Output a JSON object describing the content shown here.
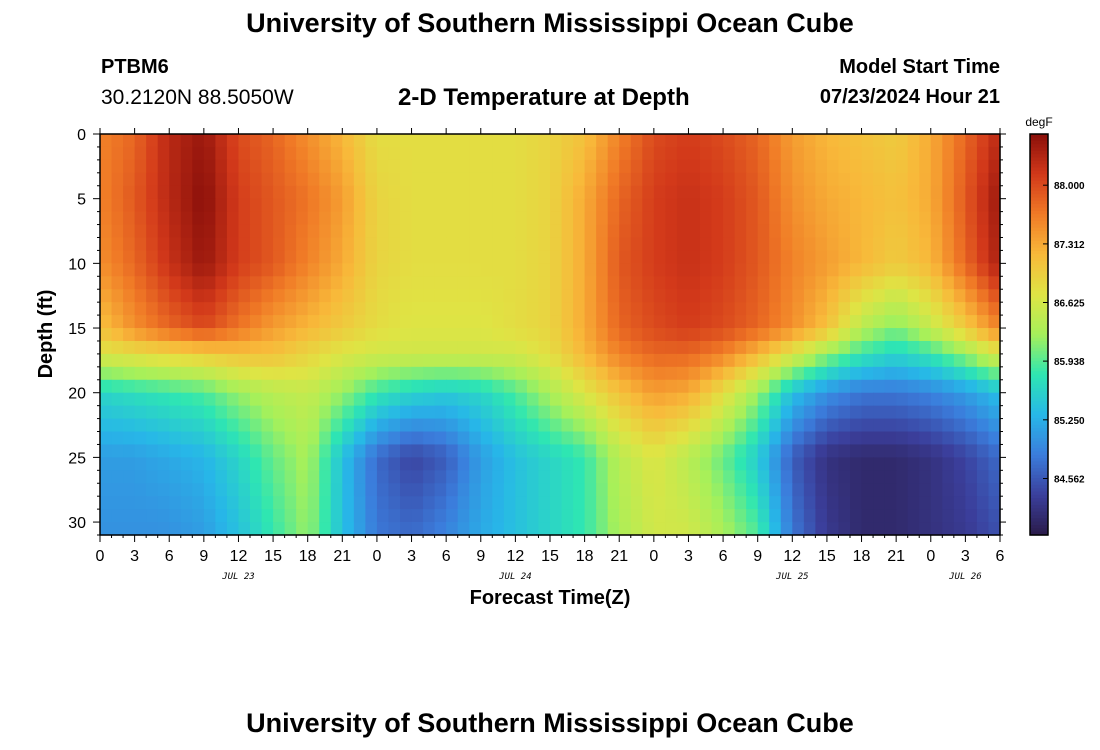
{
  "header": {
    "title": "University of Southern Mississippi Ocean Cube",
    "station_id": "PTBM6",
    "station_coords": "30.2120N  88.5050W",
    "start_label": "Model Start Time",
    "start_value": "07/23/2024 Hour 21"
  },
  "footer": {
    "title": "University of Southern Mississippi Ocean Cube"
  },
  "chart_data": {
    "type": "heatmap",
    "title": "2-D Temperature at Depth",
    "xlabel": "Forecast Time(Z)",
    "ylabel": "Depth (ft)",
    "ylim": [
      0,
      31
    ],
    "y_inverted": true,
    "x_hours": [
      0,
      78
    ],
    "x_tick_labels": [
      "0",
      "3",
      "6",
      "9",
      "12",
      "15",
      "18",
      "21",
      "0",
      "3",
      "6",
      "9",
      "12",
      "15",
      "18",
      "21",
      "0",
      "3",
      "6",
      "9",
      "12",
      "15",
      "18",
      "21",
      "0",
      "3",
      "6"
    ],
    "date_labels": [
      {
        "label": "JUL 23",
        "hour": 12
      },
      {
        "label": "JUL 24",
        "hour": 36
      },
      {
        "label": "JUL 25",
        "hour": 60
      },
      {
        "label": "JUL 26",
        "hour": 75
      }
    ],
    "y_ticks": [
      0,
      5,
      10,
      15,
      20,
      25,
      30
    ],
    "colorbar": {
      "unit": "degF",
      "range": [
        83.9,
        88.6
      ],
      "tick_values": [
        88.0,
        87.312,
        86.625,
        85.938,
        85.25,
        84.562
      ],
      "tick_labels": [
        "88.000",
        "87.312",
        "86.625",
        "85.938",
        "85.250",
        "84.562"
      ],
      "colors": [
        "#2a1b4a",
        "#3b3f9c",
        "#3b7ddc",
        "#27b7e8",
        "#2ee6b2",
        "#a6f05a",
        "#dfe444",
        "#f8b93a",
        "#f07a26",
        "#d2381a",
        "#8a0f0a"
      ]
    },
    "grid": false,
    "depths_ft": [
      0,
      5,
      10,
      15,
      17,
      20,
      25,
      31
    ],
    "times_h": [
      0,
      3,
      6,
      9,
      12,
      15,
      18,
      21,
      24,
      27,
      30,
      33,
      36,
      39,
      42,
      45,
      48,
      51,
      54,
      57,
      60,
      63,
      66,
      69,
      72,
      75,
      78
    ],
    "temperature_degF": [
      [
        87.6,
        87.8,
        88.3,
        88.5,
        88.0,
        87.8,
        87.5,
        87.2,
        86.8,
        86.8,
        86.8,
        86.8,
        86.8,
        86.9,
        87.1,
        87.6,
        88.0,
        88.1,
        88.0,
        87.8,
        87.4,
        87.2,
        87.1,
        87.0,
        87.3,
        87.8,
        88.3
      ],
      [
        87.6,
        87.9,
        88.3,
        88.6,
        88.1,
        87.9,
        87.7,
        87.4,
        86.9,
        86.8,
        86.8,
        86.8,
        86.8,
        86.9,
        87.3,
        87.8,
        88.1,
        88.2,
        88.1,
        87.9,
        87.5,
        87.3,
        87.2,
        87.1,
        87.3,
        87.9,
        88.5
      ],
      [
        87.5,
        87.8,
        88.2,
        88.5,
        88.1,
        87.9,
        87.6,
        87.3,
        86.9,
        86.8,
        86.8,
        86.8,
        86.8,
        86.9,
        87.3,
        87.9,
        88.1,
        88.2,
        88.1,
        87.9,
        87.6,
        87.4,
        87.2,
        87.0,
        87.2,
        87.8,
        88.4
      ],
      [
        87.1,
        87.5,
        87.8,
        88.0,
        87.7,
        87.4,
        87.2,
        87.0,
        86.8,
        86.7,
        86.7,
        86.7,
        86.8,
        86.9,
        87.3,
        87.8,
        88.0,
        88.1,
        88.0,
        87.8,
        87.5,
        87.1,
        86.4,
        86.1,
        86.5,
        87.0,
        87.6
      ],
      [
        86.7,
        86.8,
        86.9,
        87.0,
        87.1,
        87.1,
        86.9,
        86.7,
        86.6,
        86.6,
        86.6,
        86.6,
        86.6,
        86.8,
        87.2,
        87.6,
        87.8,
        87.8,
        87.6,
        87.2,
        86.7,
        86.2,
        85.8,
        85.6,
        85.8,
        86.2,
        86.7
      ],
      [
        85.6,
        85.7,
        85.8,
        85.9,
        86.2,
        86.4,
        86.5,
        86.2,
        85.8,
        85.6,
        85.5,
        85.6,
        85.9,
        86.3,
        86.7,
        87.1,
        87.4,
        87.3,
        86.8,
        86.2,
        85.4,
        85.0,
        84.8,
        84.8,
        84.9,
        85.1,
        85.4
      ],
      [
        85.1,
        85.1,
        85.2,
        85.3,
        85.6,
        86.0,
        86.3,
        85.4,
        84.7,
        84.4,
        84.6,
        85.1,
        85.4,
        85.6,
        85.8,
        86.4,
        86.7,
        86.4,
        86.0,
        85.5,
        84.6,
        84.2,
        84.1,
        84.1,
        84.2,
        84.4,
        84.7
      ],
      [
        85.0,
        85.0,
        85.0,
        85.1,
        85.4,
        85.8,
        86.2,
        85.4,
        84.8,
        84.7,
        84.9,
        85.2,
        85.4,
        85.6,
        85.8,
        86.3,
        86.6,
        86.6,
        86.3,
        85.9,
        84.8,
        84.3,
        84.1,
        84.1,
        84.2,
        84.3,
        84.5
      ]
    ]
  }
}
